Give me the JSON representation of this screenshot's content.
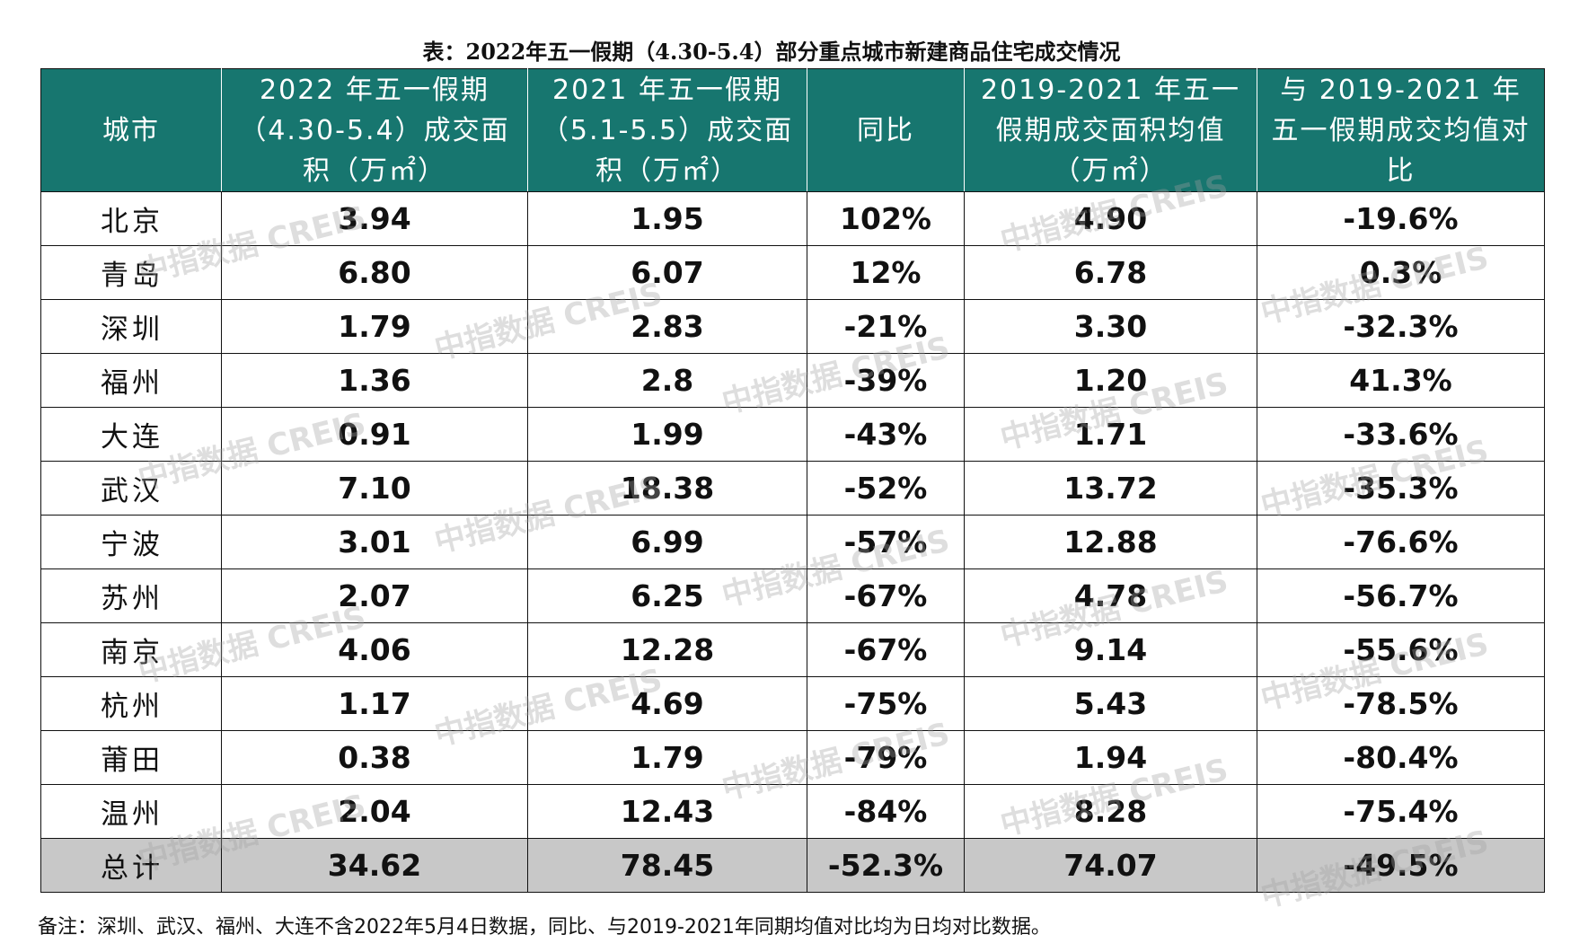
{
  "title": "表：2022年五一假期（4.30-5.4）部分重点城市新建商品住宅成交情况",
  "table": {
    "headers": [
      "城市",
      "2022 年五一假期（4.30-5.4）成交面积（万㎡）",
      "2021 年五一假期（5.1-5.5）成交面积（万㎡）",
      "同比",
      "2019-2021 年五一假期成交面积均值（万㎡）",
      "与 2019-2021 年五一假期成交均值对比"
    ],
    "rows": [
      [
        "北京",
        "3.94",
        "1.95",
        "102%",
        "4.90",
        "-19.6%"
      ],
      [
        "青岛",
        "6.80",
        "6.07",
        "12%",
        "6.78",
        "0.3%"
      ],
      [
        "深圳",
        "1.79",
        "2.83",
        "-21%",
        "3.30",
        "-32.3%"
      ],
      [
        "福州",
        "1.36",
        "2.8",
        "-39%",
        "1.20",
        "41.3%"
      ],
      [
        "大连",
        "0.91",
        "1.99",
        "-43%",
        "1.71",
        "-33.6%"
      ],
      [
        "武汉",
        "7.10",
        "18.38",
        "-52%",
        "13.72",
        "-35.3%"
      ],
      [
        "宁波",
        "3.01",
        "6.99",
        "-57%",
        "12.88",
        "-76.6%"
      ],
      [
        "苏州",
        "2.07",
        "6.25",
        "-67%",
        "4.78",
        "-56.7%"
      ],
      [
        "南京",
        "4.06",
        "12.28",
        "-67%",
        "9.14",
        "-55.6%"
      ],
      [
        "杭州",
        "1.17",
        "4.69",
        "-75%",
        "5.43",
        "-78.5%"
      ],
      [
        "莆田",
        "0.38",
        "1.79",
        "-79%",
        "1.94",
        "-80.4%"
      ],
      [
        "温州",
        "2.04",
        "12.43",
        "-84%",
        "8.28",
        "-75.4%"
      ]
    ],
    "total": [
      "总计",
      "34.62",
      "78.45",
      "-52.3%",
      "74.07",
      "-49.5%"
    ]
  },
  "watermark": "中指数据 CREIS",
  "footnote": "备注：深圳、武汉、福州、大连不含2022年5月4日数据，同比、与2019-2021年同期均值对比均为日均对比数据。",
  "colors": {
    "header_bg": "#17766f",
    "total_bg": "#c8c8c8",
    "border": "#111111"
  }
}
